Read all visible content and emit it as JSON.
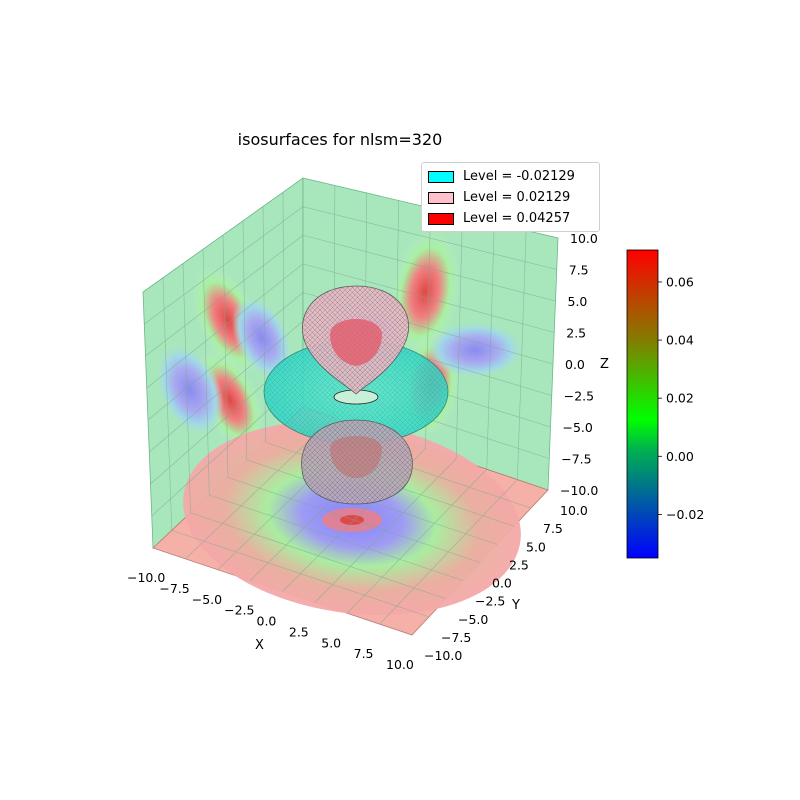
{
  "chart_data": {
    "type": "3d-isosurface",
    "title": "isosurfaces for nlsm=320",
    "xlabel": "X",
    "ylabel": "Y",
    "zlabel": "Z",
    "xlim": [
      -10,
      10
    ],
    "ylim": [
      -10,
      10
    ],
    "zlim": [
      -10,
      10
    ],
    "x_ticks": [
      "−10.0",
      "−7.5",
      "−5.0",
      "−2.5",
      "0.0",
      "2.5",
      "5.0",
      "7.5",
      "10.0"
    ],
    "y_ticks": [
      "−10.0",
      "−7.5",
      "−5.0",
      "−2.5",
      "0.0",
      "2.5",
      "5.0",
      "7.5",
      "10.0"
    ],
    "z_ticks": [
      "−10.0",
      "−7.5",
      "−5.0",
      "−2.5",
      "0.0",
      "2.5",
      "5.0",
      "7.5",
      "10.0"
    ],
    "legend": {
      "placement": "top-right",
      "entries": [
        {
          "label": "Level = -0.02129",
          "color": "#00ffff"
        },
        {
          "label": "Level = 0.02129",
          "color": "#ffc0cb"
        },
        {
          "label": "Level = 0.04257",
          "color": "#ff0000"
        }
      ]
    },
    "colorbar": {
      "range": [
        -0.035,
        0.071
      ],
      "ticks": [
        {
          "value": -0.02,
          "label": "−0.02"
        },
        {
          "value": 0.0,
          "label": "0.00"
        },
        {
          "value": 0.02,
          "label": "0.02"
        },
        {
          "value": 0.04,
          "label": "0.04"
        },
        {
          "value": 0.06,
          "label": "0.06"
        }
      ],
      "colors": [
        "#0000ff",
        "#00ff00",
        "#ff0000"
      ]
    }
  }
}
